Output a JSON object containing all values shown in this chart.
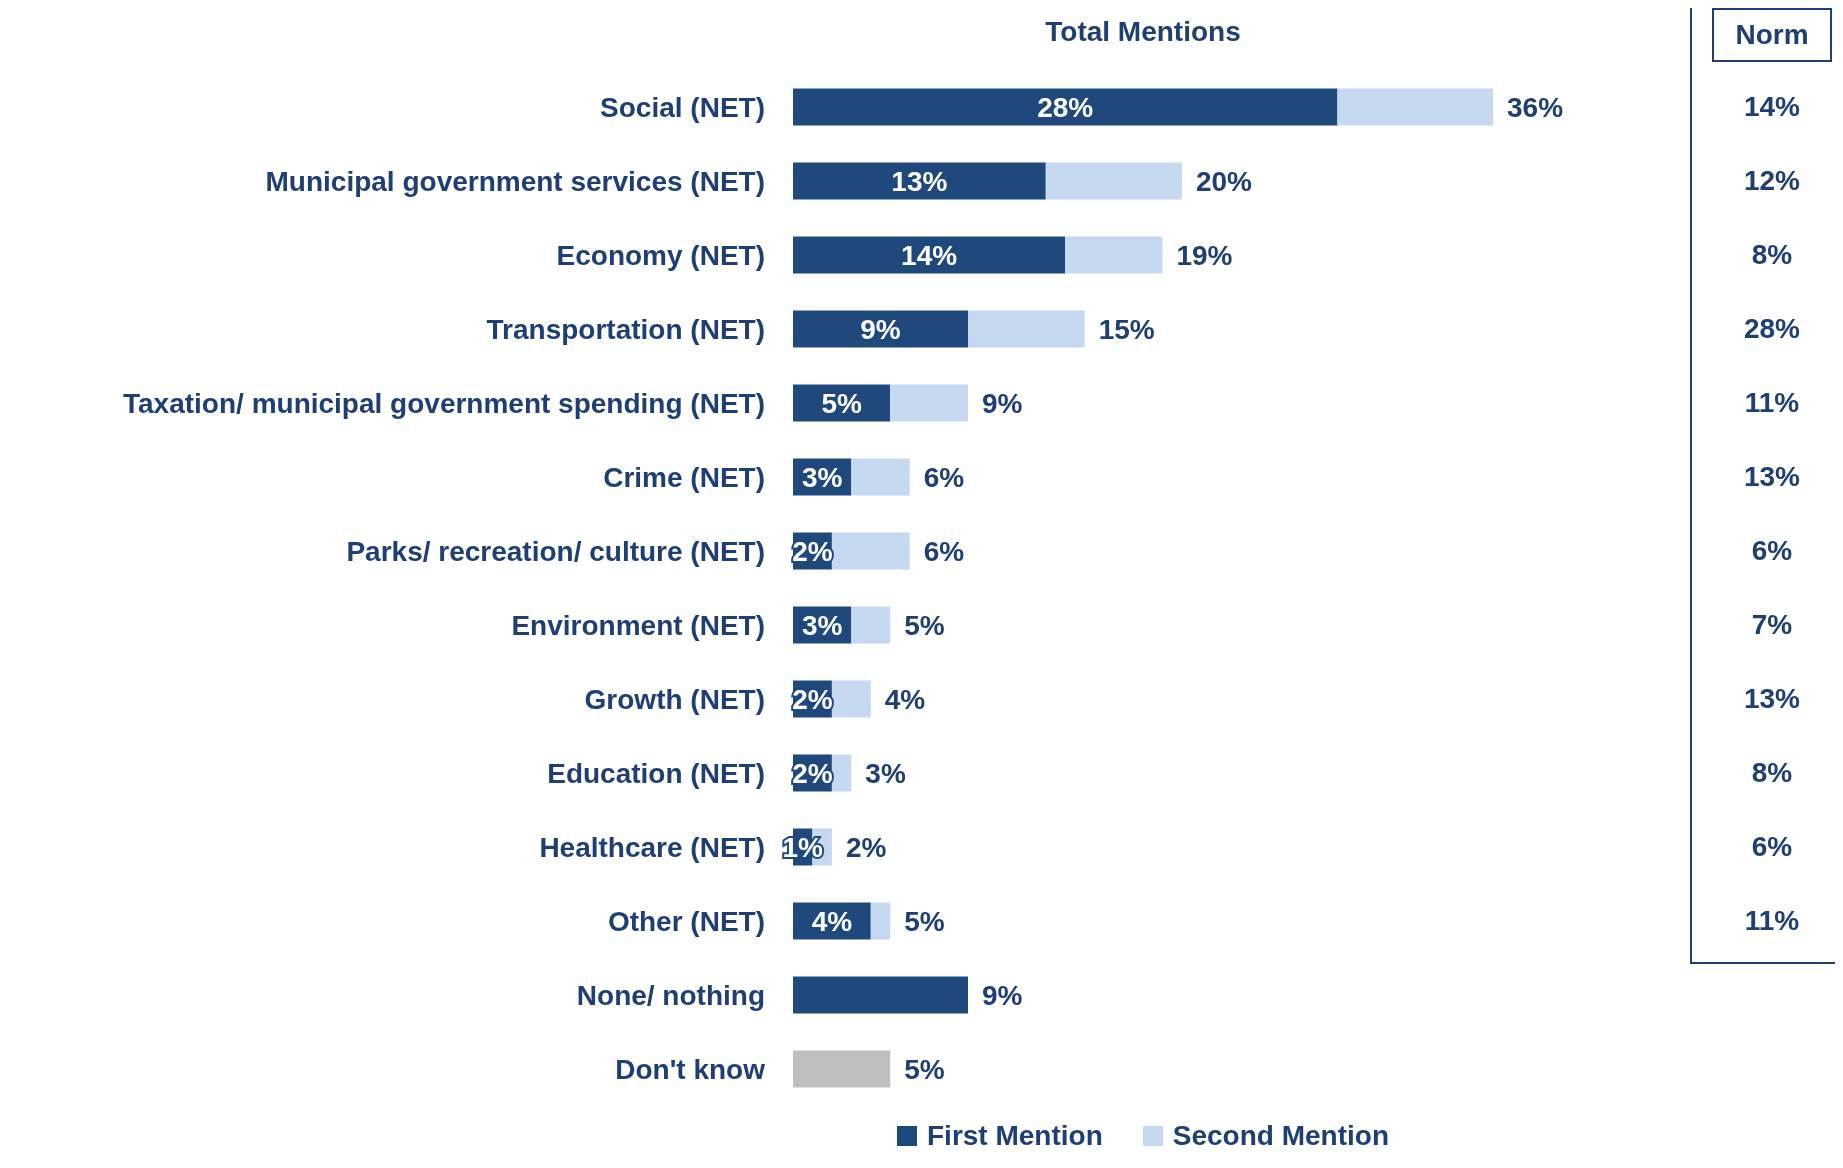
{
  "chart_data": [
    {
      "type": "bar",
      "orientation": "horizontal",
      "stacked": true,
      "title": "Total Mentions",
      "legend": "bottom",
      "categories": [
        "Social (NET)",
        "Municipal government services (NET)",
        "Economy (NET)",
        "Transportation (NET)",
        "Taxation/ municipal government spending (NET)",
        "Crime (NET)",
        "Parks/ recreation/ culture (NET)",
        "Environment (NET)",
        "Growth (NET)",
        "Education (NET)",
        "Healthcare (NET)",
        "Other (NET)",
        "None/ nothing",
        "Don't know"
      ],
      "series": [
        {
          "name": "First Mention",
          "color": "#1f497d",
          "values": [
            28,
            13,
            14,
            9,
            5,
            3,
            2,
            3,
            2,
            2,
            1,
            4,
            9,
            null
          ],
          "value_labels": [
            "28%",
            "13%",
            "14%",
            "9%",
            "5%",
            "3%",
            "2%",
            "3%",
            "2%",
            "2%",
            "1%",
            "4%",
            null,
            null
          ]
        },
        {
          "name": "Second Mention",
          "color": "#c6d9f1",
          "values": [
            8,
            7,
            5,
            6,
            4,
            3,
            4,
            2,
            2,
            1,
            1,
            1,
            null,
            null
          ]
        },
        {
          "color": "#bfbfbf",
          "values": [
            null,
            null,
            null,
            null,
            null,
            null,
            null,
            null,
            null,
            null,
            null,
            null,
            null,
            5
          ]
        }
      ],
      "totals": [
        "36%",
        "20%",
        "19%",
        "15%",
        "9%",
        "6%",
        "6%",
        "5%",
        "4%",
        "3%",
        "2%",
        "5%",
        "9%",
        "5%"
      ]
    },
    {
      "type": "other",
      "title": "Norm",
      "annotations": [
        "14%",
        "12%",
        "8%",
        "28%",
        "11%",
        "13%",
        "6%",
        "7%",
        "13%",
        "8%",
        "6%",
        "11%"
      ]
    }
  ]
}
